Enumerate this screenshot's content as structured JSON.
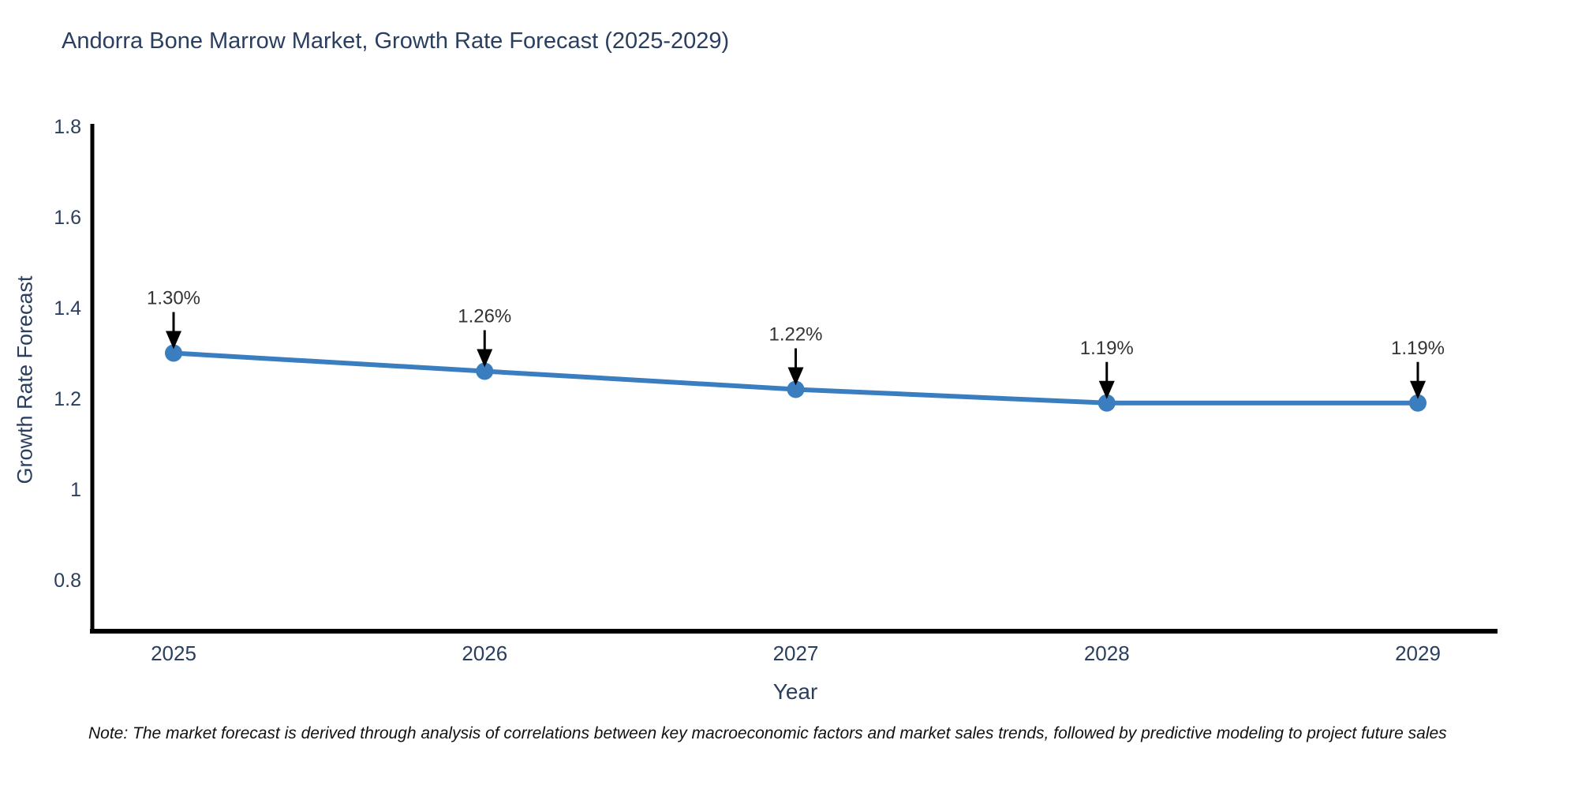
{
  "title": "Andorra Bone Marrow Market, Growth Rate Forecast (2025-2029)",
  "note": "Note: The market forecast is derived through analysis of correlations between key macroeconomic factors and market sales trends, followed by predictive modeling to project future sales",
  "chart_data": {
    "type": "line",
    "title": "Andorra Bone Marrow Market, Growth Rate Forecast (2025-2029)",
    "xlabel": "Year",
    "ylabel": "Growth Rate Forecast",
    "categories": [
      "2025",
      "2026",
      "2027",
      "2028",
      "2029"
    ],
    "series": [
      {
        "name": "Growth Rate Forecast",
        "values": [
          1.3,
          1.26,
          1.22,
          1.19,
          1.19
        ]
      }
    ],
    "point_labels": [
      "1.30%",
      "1.26%",
      "1.22%",
      "1.19%",
      "1.19%"
    ],
    "yticks": [
      1.8,
      1.6,
      1.4,
      1.2,
      1,
      0.8
    ],
    "ytick_labels": [
      "1.8",
      "1.6",
      "1.4",
      "1.2",
      "1",
      "0.8"
    ],
    "ylim": [
      0.687,
      1.8
    ],
    "grid": false,
    "legend": "none",
    "annotation_style": "value label above point with downward black arrow",
    "colors": {
      "line": "#3a7ebf",
      "marker": "#3a7ebf",
      "axis": "#000000",
      "axis_text": "#2a3f5f",
      "annotation_text": "#333333",
      "arrow": "#000000",
      "background": "#ffffff"
    }
  }
}
